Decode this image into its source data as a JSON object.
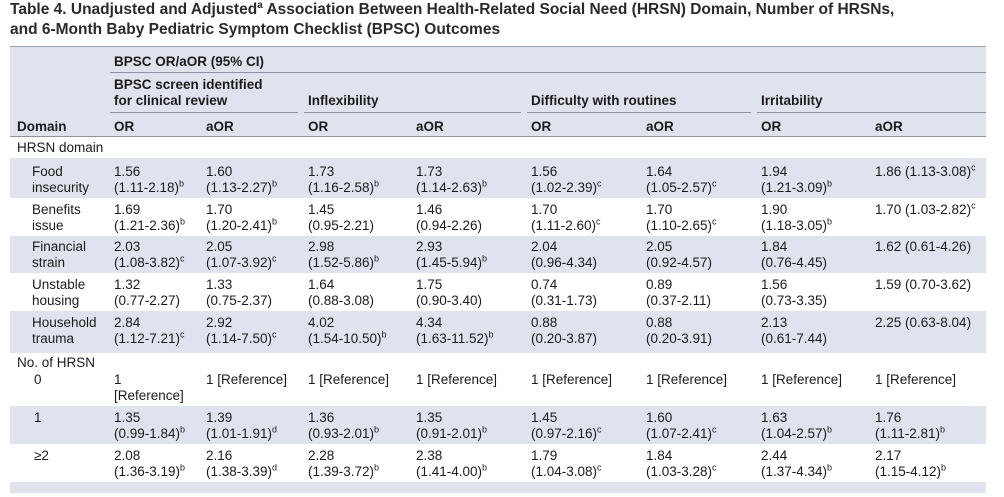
{
  "title": {
    "line1_pre": "Table 4. Unadjusted and Adjusted",
    "line1_sup": "a",
    "line1_post": " Association Between Health-Related Social Need (HRSN) Domain, Number of HRSNs,",
    "line2": "and 6-Month Baby Pediatric Symptom Checklist (BPSC) Outcomes"
  },
  "header": {
    "group": "BPSC OR/aOR (95% CI)",
    "outcomes": [
      "BPSC screen identified for clinical review",
      "Inflexibility",
      "Difficulty with routines",
      "Irritability"
    ],
    "domain": "Domain",
    "or": "OR",
    "aor": "aOR"
  },
  "sections": {
    "hrsn_domain": "HRSN domain",
    "no_hrsn": "No. of HRSN"
  },
  "rows": [
    {
      "label": [
        "Food",
        "insecurity"
      ],
      "cells": [
        [
          "1.56",
          "(1.11-2.18)",
          "b"
        ],
        [
          "1.60",
          "(1.13-2.27)",
          "b"
        ],
        [
          "1.73",
          "(1.16-2.58)",
          "b"
        ],
        [
          "1.73",
          "(1.14-2.63)",
          "b"
        ],
        [
          "1.56",
          "(1.02-2.39)",
          "c"
        ],
        [
          "1.64",
          "(1.05-2.57)",
          "c"
        ],
        [
          "1.94",
          "(1.21-3.09)",
          "b"
        ],
        [
          "1.86 (1.13-3.08)",
          "",
          "c"
        ]
      ]
    },
    {
      "label": [
        "Benefits",
        "issue"
      ],
      "cells": [
        [
          "1.69",
          "(1.21-2.36)",
          "b"
        ],
        [
          "1.70",
          "(1.20-2.41)",
          "b"
        ],
        [
          "1.45",
          "(0.95-2.21)",
          ""
        ],
        [
          "1.46",
          "(0.94-2.26)",
          ""
        ],
        [
          "1.70",
          "(1.11-2.60)",
          "c"
        ],
        [
          "1.70",
          "(1.10-2.65)",
          "c"
        ],
        [
          "1.90",
          "(1.18-3.05)",
          "b"
        ],
        [
          "1.70 (1.03-2.82)",
          "",
          "c"
        ]
      ]
    },
    {
      "label": [
        "Financial",
        "strain"
      ],
      "cells": [
        [
          "2.03",
          "(1.08-3.82)",
          "c"
        ],
        [
          "2.05",
          "(1.07-3.92)",
          "c"
        ],
        [
          "2.98",
          "(1.52-5.86)",
          "b"
        ],
        [
          "2.93",
          "(1.45-5.94)",
          "b"
        ],
        [
          "2.04",
          "(0.96-4.34)",
          ""
        ],
        [
          "2.05",
          "(0.92-4.57)",
          ""
        ],
        [
          "1.84",
          "(0.76-4.45)",
          ""
        ],
        [
          "1.62 (0.61-4.26)",
          "",
          ""
        ]
      ]
    },
    {
      "label": [
        "Unstable",
        "housing"
      ],
      "cells": [
        [
          "1.32",
          "(0.77-2.27)",
          ""
        ],
        [
          "1.33",
          "(0.75-2.37)",
          ""
        ],
        [
          "1.64",
          "(0.88-3.08)",
          ""
        ],
        [
          "1.75",
          "(0.90-3.40)",
          ""
        ],
        [
          "0.74",
          "(0.31-1.73)",
          ""
        ],
        [
          "0.89",
          "(0.37-2.11)",
          ""
        ],
        [
          "1.56",
          "(0.73-3.35)",
          ""
        ],
        [
          "1.59 (0.70-3.62)",
          "",
          ""
        ]
      ]
    },
    {
      "label": [
        "Household",
        "trauma"
      ],
      "cells": [
        [
          "2.84",
          "(1.12-7.21)",
          "c"
        ],
        [
          "2.92",
          "(1.14-7.50)",
          "c"
        ],
        [
          "4.02",
          "(1.54-10.50)",
          "b"
        ],
        [
          "4.34",
          "(1.63-11.52)",
          "b"
        ],
        [
          "0.88",
          "(0.20-3.87)",
          ""
        ],
        [
          "0.88",
          "(0.20-3.91)",
          ""
        ],
        [
          "2.13",
          "(0.61-7.44)",
          ""
        ],
        [
          "2.25 (0.63-8.04)",
          "",
          ""
        ]
      ]
    },
    {
      "label": [
        "0",
        ""
      ],
      "cells": [
        [
          "1",
          "[Reference]",
          ""
        ],
        [
          "1 [Reference]",
          "",
          ""
        ],
        [
          "1 [Reference]",
          "",
          ""
        ],
        [
          "1 [Reference]",
          "",
          ""
        ],
        [
          "1 [Reference]",
          "",
          ""
        ],
        [
          "1 [Reference]",
          "",
          ""
        ],
        [
          "1 [Reference]",
          "",
          ""
        ],
        [
          "1 [Reference]",
          "",
          ""
        ]
      ]
    },
    {
      "label": [
        "1",
        ""
      ],
      "cells": [
        [
          "1.35",
          "(0.99-1.84)",
          "b"
        ],
        [
          "1.39",
          "(1.01-1.91)",
          "d"
        ],
        [
          "1.36",
          "(0.93-2.01)",
          "b"
        ],
        [
          "1.35",
          "(0.91-2.01)",
          "b"
        ],
        [
          "1.45",
          "(0.97-2.16)",
          "c"
        ],
        [
          "1.60",
          "(1.07-2.41)",
          "c"
        ],
        [
          "1.63",
          "(1.04-2.57)",
          "b"
        ],
        [
          "1.76",
          "(1.11-2.81)",
          "b"
        ]
      ]
    },
    {
      "label": [
        "≥2",
        ""
      ],
      "cells": [
        [
          "2.08",
          "(1.36-3.19)",
          "b"
        ],
        [
          "2.16",
          "(1.38-3.39)",
          "d"
        ],
        [
          "2.28",
          "(1.39-3.72)",
          "b"
        ],
        [
          "2.38",
          "(1.41-4.00)",
          "b"
        ],
        [
          "1.79",
          "(1.04-3.08)",
          "c"
        ],
        [
          "1.84",
          "(1.03-3.28)",
          "c"
        ],
        [
          "2.44",
          "(1.37-4.34)",
          "b"
        ],
        [
          "2.17",
          "(1.15-4.12)",
          "b"
        ]
      ]
    }
  ]
}
